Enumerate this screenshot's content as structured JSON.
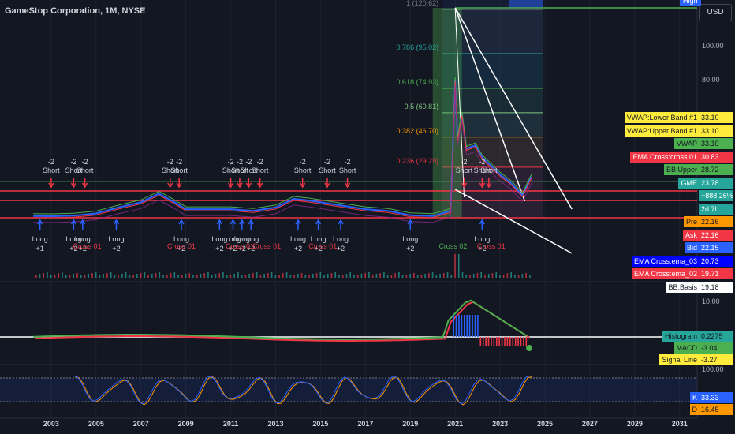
{
  "header": {
    "title": "GameStop Corporation, 1M, NYSE",
    "currency": "USD",
    "top_tag": "High"
  },
  "price_axis": [
    "100.00",
    "80.00"
  ],
  "macd_axis": [
    "10.00"
  ],
  "stoch_axis": [
    "100.00"
  ],
  "time_axis": [
    "2003",
    "2005",
    "2007",
    "2009",
    "2011",
    "2013",
    "2015",
    "2017",
    "2019",
    "2021",
    "2023",
    "2025",
    "2027",
    "2029",
    "2031"
  ],
  "fib_levels": [
    {
      "label": "1 (120.62)",
      "color": "#787b86"
    },
    {
      "label": "0.786 (95.02)",
      "color": "#26a69a"
    },
    {
      "label": "0.618 (74.93)",
      "color": "#4caf50"
    },
    {
      "label": "0.5 (60.81)",
      "color": "#81c784"
    },
    {
      "label": "0.382 (46.70)",
      "color": "#ff9800"
    },
    {
      "label": "0.236 (29.29)",
      "color": "#f23645"
    }
  ],
  "price_tags": [
    {
      "label": "VWAP:Lower Band #1",
      "value": "33.10",
      "bg": "#ffeb3b",
      "fg": "#131722"
    },
    {
      "label": "VWAP:Upper Band #1",
      "value": "33.10",
      "bg": "#ffeb3b",
      "fg": "#131722"
    },
    {
      "label": "VWAP",
      "value": "33.10",
      "bg": "#4caf50",
      "fg": "#131722"
    },
    {
      "label": "EMA Cross:cross 01",
      "value": "30.83",
      "bg": "#f23645",
      "fg": "#ffffff"
    },
    {
      "label": "BB:Upper",
      "value": "28.72",
      "bg": "#4caf50",
      "fg": "#131722"
    },
    {
      "label": "GME",
      "value": "23.78",
      "bg": "#26a69a",
      "fg": "#ffffff"
    },
    {
      "label": "",
      "value": "+888.26%",
      "bg": "#26a69a",
      "fg": "#ffffff"
    },
    {
      "label": "",
      "value": "2d 7h",
      "bg": "#26a69a",
      "fg": "#ffffff"
    },
    {
      "label": "Pre",
      "value": "22.16",
      "bg": "#ff9800",
      "fg": "#131722"
    },
    {
      "label": "Ask",
      "value": "22.16",
      "bg": "#f23645",
      "fg": "#ffffff"
    },
    {
      "label": "Bid",
      "value": "22.15",
      "bg": "#2962ff",
      "fg": "#ffffff"
    },
    {
      "label": "EMA Cross:ema_03",
      "value": "20.73",
      "bg": "#0000ff",
      "fg": "#ffffff"
    },
    {
      "label": "EMA Cross:ema_02",
      "value": "19.71",
      "bg": "#f23645",
      "fg": "#ffffff"
    },
    {
      "label": "BB:Basis",
      "value": "19.18",
      "bg": "#ffffff",
      "fg": "#131722"
    }
  ],
  "macd_tags": [
    {
      "label": "Histogram",
      "value": "0.2275",
      "bg": "#26a69a",
      "fg": "#131722"
    },
    {
      "label": "MACD",
      "value": "-3.04",
      "bg": "#4caf50",
      "fg": "#131722"
    },
    {
      "label": "Signal Line",
      "value": "-3.27",
      "bg": "#ffeb3b",
      "fg": "#131722"
    }
  ],
  "stoch_tags": [
    {
      "label": "K",
      "value": "33.33",
      "bg": "#2962ff",
      "fg": "#ffffff"
    },
    {
      "label": "D",
      "value": "16.45",
      "bg": "#ff9800",
      "fg": "#131722"
    }
  ],
  "signals": {
    "short": [
      {
        "text": "-2 Short",
        "year": 2003.0
      },
      {
        "text": "-2 Short",
        "year": 2004.0
      },
      {
        "text": "-2 Short",
        "year": 2004.5
      },
      {
        "text": "-2 Short",
        "year": 2008.3
      },
      {
        "text": "-2 Short",
        "year": 2008.7
      },
      {
        "text": "-2 Short",
        "year": 2011.0
      },
      {
        "text": "-2 Short",
        "year": 2011.4
      },
      {
        "text": "-2 Short",
        "year": 2011.8
      },
      {
        "text": "-2 Short",
        "year": 2012.3
      },
      {
        "text": "-2 Short",
        "year": 2014.2
      },
      {
        "text": "-2 Short",
        "year": 2015.3
      },
      {
        "text": "-2 Short",
        "year": 2016.2
      },
      {
        "text": "-2 Short",
        "year": 2021.4
      },
      {
        "text": "-2 Short",
        "year": 2022.2
      },
      {
        "text": "Short",
        "year": 2022.5
      }
    ],
    "long": [
      {
        "text": "Long +1",
        "year": 2002.5
      },
      {
        "text": "Long +2",
        "year": 2004.0
      },
      {
        "text": "Long +2",
        "year": 2004.4
      },
      {
        "text": "Long +2",
        "year": 2005.9
      },
      {
        "text": "Long +2",
        "year": 2008.8
      },
      {
        "text": "Long +2",
        "year": 2010.5
      },
      {
        "text": "Long +2",
        "year": 2011.1
      },
      {
        "text": "Long +2",
        "year": 2011.5
      },
      {
        "text": "Long +2",
        "year": 2011.9
      },
      {
        "text": "Long +2",
        "year": 2014.0
      },
      {
        "text": "Long +2",
        "year": 2014.9
      },
      {
        "text": "Long +2",
        "year": 2015.9
      },
      {
        "text": "Long +2",
        "year": 2019.0
      },
      {
        "text": "Long +2",
        "year": 2022.2
      }
    ]
  },
  "cross_labels": [
    {
      "text": "Cross 01",
      "year": 2004.6
    },
    {
      "text": "Cross 01",
      "year": 2008.8
    },
    {
      "text": "Cross 01",
      "year": 2011.4
    },
    {
      "text": "Cross 01",
      "year": 2012.6
    },
    {
      "text": "Cross 01",
      "year": 2015.1
    },
    {
      "text": "Cross 02",
      "year": 2020.9
    },
    {
      "text": "Cross 01",
      "year": 2022.6
    }
  ],
  "chart_data": {
    "type": "line",
    "title": "GameStop Corporation, 1M, NYSE",
    "xlim": [
      2001.0,
      2031.5
    ],
    "ylim": [
      -5,
      125
    ],
    "series": [
      {
        "name": "GME",
        "color": "#26a69a",
        "x": [
          2002.2,
          2003,
          2004,
          2005,
          2006,
          2007,
          2007.8,
          2008.5,
          2009,
          2010,
          2011,
          2012,
          2013,
          2013.8,
          2014.5,
          2015,
          2016,
          2017,
          2018,
          2019,
          2020,
          2020.8,
          2021.0,
          2021.1,
          2021.3,
          2021.5,
          2021.9,
          2022.2,
          2022.6,
          2023,
          2023.5,
          2024,
          2024.4
        ],
        "y": [
          1.0,
          0.9,
          1.3,
          2.5,
          6,
          9,
          14,
          9,
          5,
          5,
          5,
          4,
          6,
          11,
          10,
          9,
          7,
          5,
          4,
          1.5,
          1.0,
          4,
          80,
          45,
          60,
          40,
          42,
          35,
          30,
          25,
          20,
          13,
          23.78
        ]
      }
    ],
    "fib_retracement": {
      "levels": [
        1,
        0.786,
        0.618,
        0.5,
        0.382,
        0.236
      ],
      "values": [
        120.62,
        95.02,
        74.93,
        60.81,
        46.7,
        29.29
      ]
    },
    "horizontal_levels": [
      33.1,
      30.83,
      28.72,
      19.71
    ],
    "macd": {
      "histogram": 0.2275,
      "macd": -3.04,
      "signal": -3.27
    },
    "stochastic": {
      "k": 33.33,
      "d": 16.45
    },
    "grid": true
  }
}
